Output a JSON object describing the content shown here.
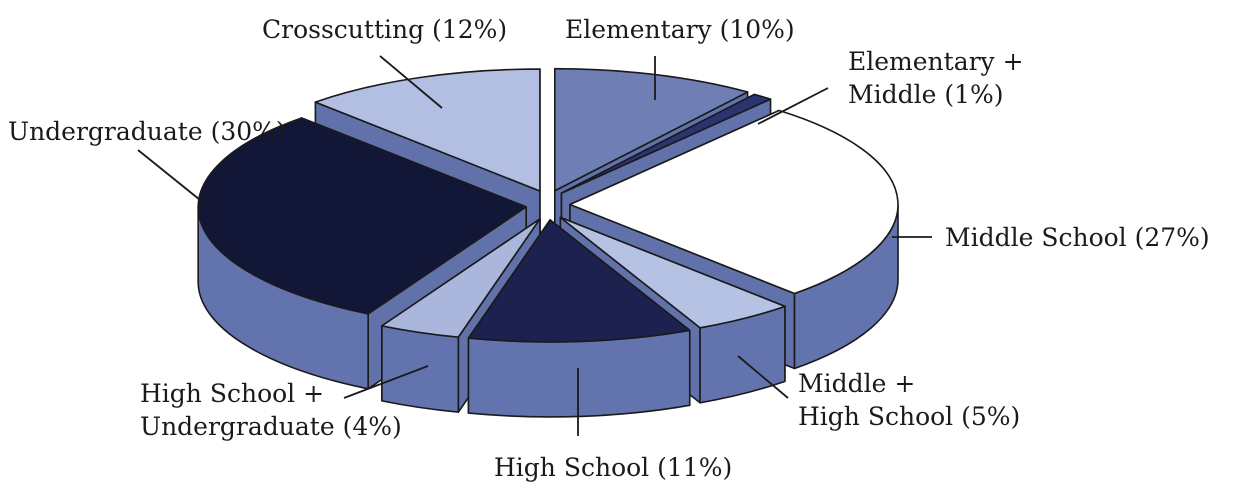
{
  "chart_data": {
    "type": "pie",
    "style": "3d-exploded",
    "title": "",
    "categories": [
      "Elementary",
      "Elementary + Middle",
      "Middle School",
      "Middle + High School",
      "High School",
      "High School + Undergraduate",
      "Undergraduate",
      "Crosscutting"
    ],
    "values": [
      10,
      1,
      27,
      5,
      11,
      4,
      30,
      12
    ],
    "labels": [
      [
        "Elementary (10%)"
      ],
      [
        "Elementary +",
        "Middle (1%)"
      ],
      [
        "Middle School (27%)"
      ],
      [
        "Middle +",
        "High School (5%)"
      ],
      [
        "High School (11%)"
      ],
      [
        "High School +",
        "Undergraduate (4%)"
      ],
      [
        "Undergraduate (30%)"
      ],
      [
        "Crosscutting (12%)"
      ]
    ],
    "colors": [
      "#6f7fb3",
      "#2a3470",
      "#ffffff",
      "#b6c2e3",
      "#1c2150",
      "#aab6dc",
      "#121738",
      "#b3bfe2"
    ],
    "side_color": "#6373ad",
    "legend": "none"
  }
}
